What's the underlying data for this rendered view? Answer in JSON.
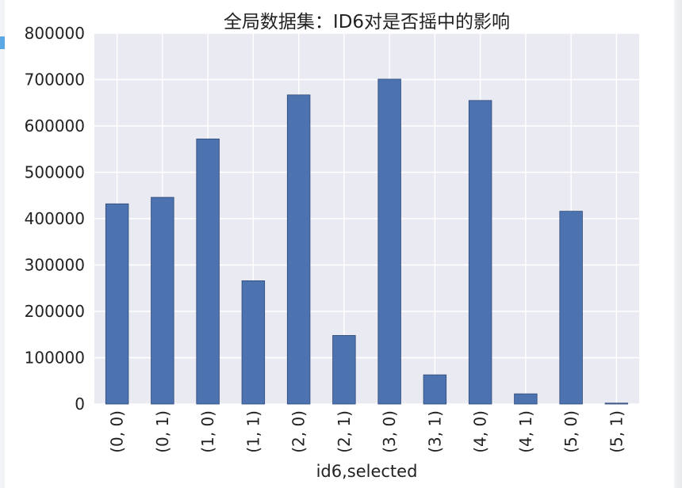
{
  "chart_data": {
    "type": "bar",
    "title": "全局数据集：ID6对是否摇中的影响",
    "xlabel": "id6,selected",
    "ylabel": "",
    "categories": [
      "(0, 0)",
      "(0, 1)",
      "(1, 0)",
      "(1, 1)",
      "(2, 0)",
      "(2, 1)",
      "(3, 0)",
      "(3, 1)",
      "(4, 0)",
      "(4, 1)",
      "(5, 0)",
      "(5, 1)"
    ],
    "values": [
      432000,
      446000,
      572000,
      266000,
      667000,
      148000,
      701000,
      63000,
      655000,
      22000,
      416000,
      2000
    ],
    "ylim": [
      0,
      800000
    ],
    "yticks": [
      "0",
      "100000",
      "200000",
      "300000",
      "400000",
      "500000",
      "600000",
      "700000",
      "800000"
    ],
    "grid": true,
    "colors": {
      "bar": "#4c72b0",
      "bar_edge": "#2f4a78",
      "plot_bg": "#eaeaf2",
      "grid": "#ffffff"
    }
  }
}
